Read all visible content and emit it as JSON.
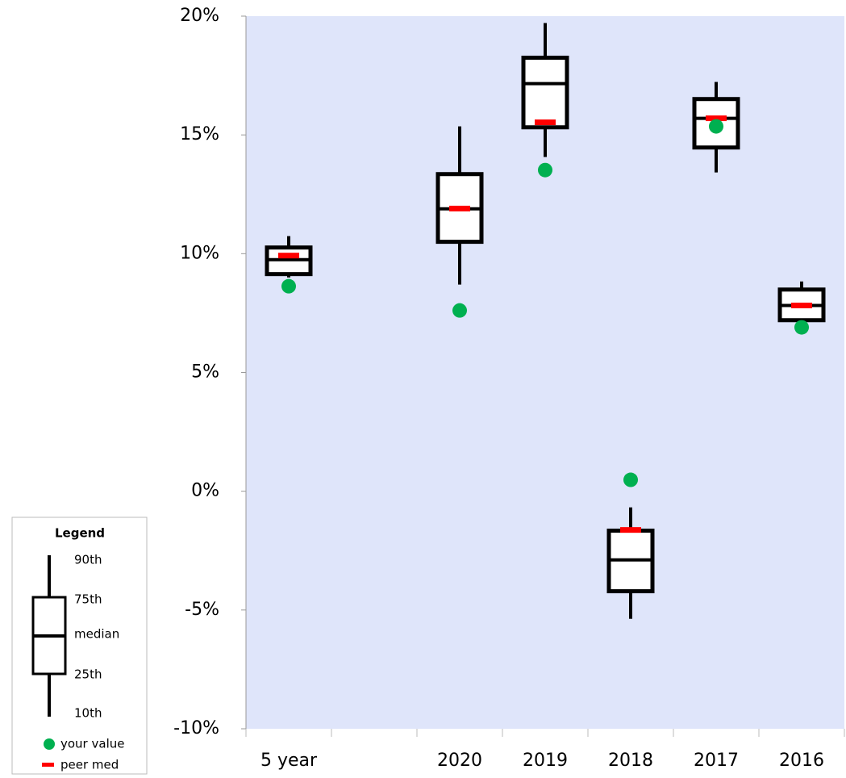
{
  "chart_data": {
    "type": "box",
    "categories": [
      "5 year",
      null,
      "2020",
      "2019",
      "2018",
      "2017",
      "2016"
    ],
    "boxes": {
      "p90": [
        10.74,
        null,
        15.36,
        19.71,
        -0.68,
        17.23,
        8.83
      ],
      "q3": [
        10.26,
        null,
        13.35,
        18.25,
        -1.66,
        16.51,
        8.49
      ],
      "median": [
        9.75,
        null,
        11.89,
        17.16,
        -2.89,
        15.7,
        7.82
      ],
      "q1": [
        9.14,
        null,
        10.5,
        15.32,
        -4.21,
        14.47,
        7.2
      ],
      "p10": [
        9.0,
        null,
        8.7,
        14.07,
        -5.37,
        13.42,
        7.0
      ],
      "color": "#000000"
    },
    "series": [
      {
        "name": "your value",
        "color": "#00b050",
        "values": [
          8.63,
          null,
          7.61,
          13.52,
          0.48,
          15.36,
          6.9
        ]
      },
      {
        "name": "peer med",
        "color": "#ff0000",
        "values": [
          9.92,
          null,
          11.9,
          15.53,
          -1.63,
          15.7,
          7.82
        ]
      }
    ],
    "ylim": [
      -10,
      20
    ],
    "yticks": [
      {
        "value": -10,
        "label": "-10%"
      },
      {
        "value": -5,
        "label": "-5%"
      },
      {
        "value": 0,
        "label": "0%"
      },
      {
        "value": 5,
        "label": "5%"
      },
      {
        "value": 10,
        "label": "10%"
      },
      {
        "value": 15,
        "label": "15%"
      },
      {
        "value": 20,
        "label": "20%"
      }
    ],
    "plot_background": "#dfe5fa",
    "legend": {
      "title": "Legend",
      "box_labels": [
        "90th",
        "75th",
        "median",
        "25th",
        "10th"
      ]
    }
  }
}
